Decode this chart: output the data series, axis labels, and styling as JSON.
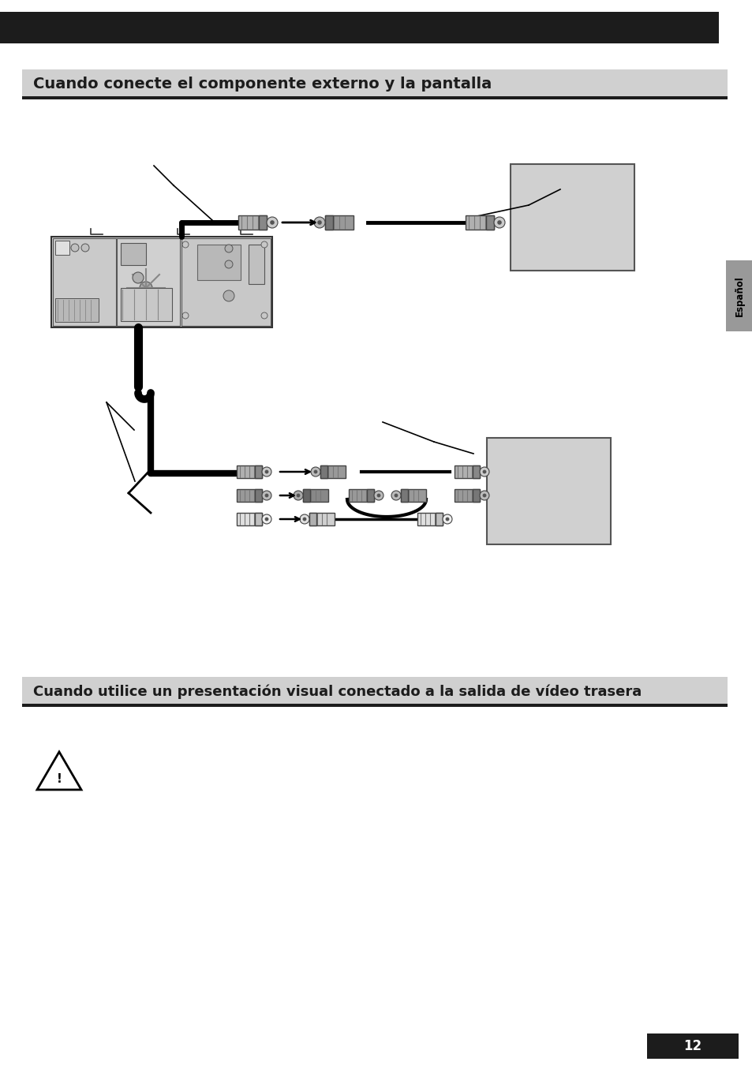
{
  "bg_color": "#ffffff",
  "header_bar_color": "#1c1c1c",
  "title1": "Cuando conecte el componente externo y la pantalla",
  "title2": "Cuando utilice un presentación visual conectado a la salida de vídeo trasera",
  "sidebar_label": "Español",
  "page_number": "12",
  "gray_title_bg": "#d0d0d0",
  "box_gray_light": "#cccccc",
  "box_gray_mid": "#bbbbbb",
  "rca_body_gray": "#aaaaaa",
  "rca_body_dark": "#888888",
  "rca_body_white": "#e8e8e8",
  "cable_black": "#111111",
  "unit_fill": "#d8d8d8",
  "unit_inner_gray": "#a0a0a0",
  "sidebar_gray": "#999999"
}
